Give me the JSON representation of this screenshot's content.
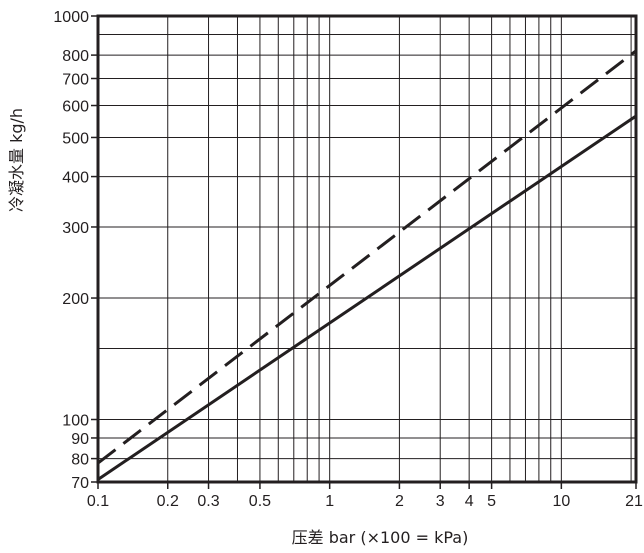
{
  "chart_data": {
    "type": "line",
    "title": "",
    "xlabel": "压差 bar (×100 = kPa)",
    "ylabel": "冷凝水量 kg/h",
    "xscale": "log",
    "yscale": "log",
    "xlim": [
      0.1,
      21
    ],
    "ylim": [
      70,
      1000
    ],
    "grid": true,
    "legend": "none",
    "x_ticks": [
      0.1,
      0.2,
      0.3,
      0.5,
      1,
      2,
      3,
      4,
      5,
      10,
      21
    ],
    "x_tick_labels": [
      "0.1",
      "0.2",
      "0.3",
      "0.5",
      "1",
      "2",
      "3",
      "4",
      "5",
      "10",
      "21"
    ],
    "y_ticks": [
      70,
      80,
      90,
      100,
      200,
      300,
      400,
      500,
      600,
      700,
      800,
      1000
    ],
    "y_tick_labels": [
      "70",
      "80",
      "90",
      "100",
      "200",
      "300",
      "400",
      "500",
      "600",
      "700",
      "800",
      "1000"
    ],
    "x_grid": [
      0.1,
      0.2,
      0.3,
      0.4,
      0.5,
      0.6,
      0.7,
      0.8,
      0.9,
      1,
      2,
      3,
      4,
      5,
      6,
      7,
      8,
      9,
      10,
      20,
      21
    ],
    "y_grid": [
      70,
      80,
      90,
      100,
      150,
      200,
      300,
      400,
      500,
      600,
      700,
      800,
      900,
      1000
    ],
    "series": [
      {
        "style": "dashed",
        "color": "#231f20",
        "x": [
          0.1,
          21
        ],
        "y": [
          78,
          820
        ]
      },
      {
        "style": "solid",
        "color": "#231f20",
        "x": [
          0.1,
          21
        ],
        "y": [
          71,
          565
        ]
      }
    ]
  }
}
